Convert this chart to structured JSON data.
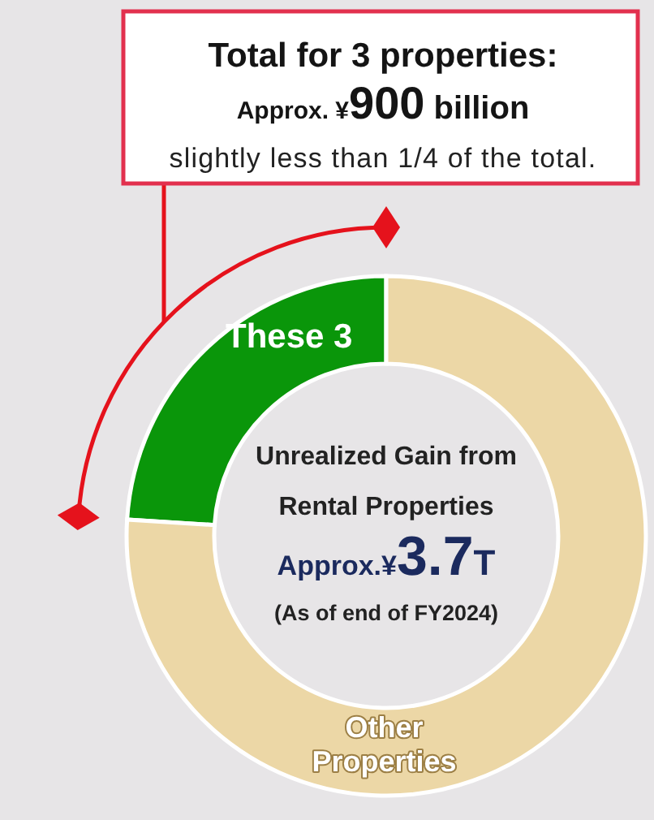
{
  "chart_data": {
    "type": "donut",
    "title": "Unrealized Gain from Rental Properties",
    "subtitle": "(As of end of FY2024)",
    "categories": [
      "These 3",
      "Other Properties"
    ],
    "values": [
      24,
      76
    ],
    "colors": [
      "#0a960a",
      "#ecd7a6"
    ],
    "annotations": [
      "Total for 3 properties:",
      "Approx. ¥900 billion",
      "slightly less than 1/4 of the total.",
      "Approx.¥3.7T"
    ]
  }
}
